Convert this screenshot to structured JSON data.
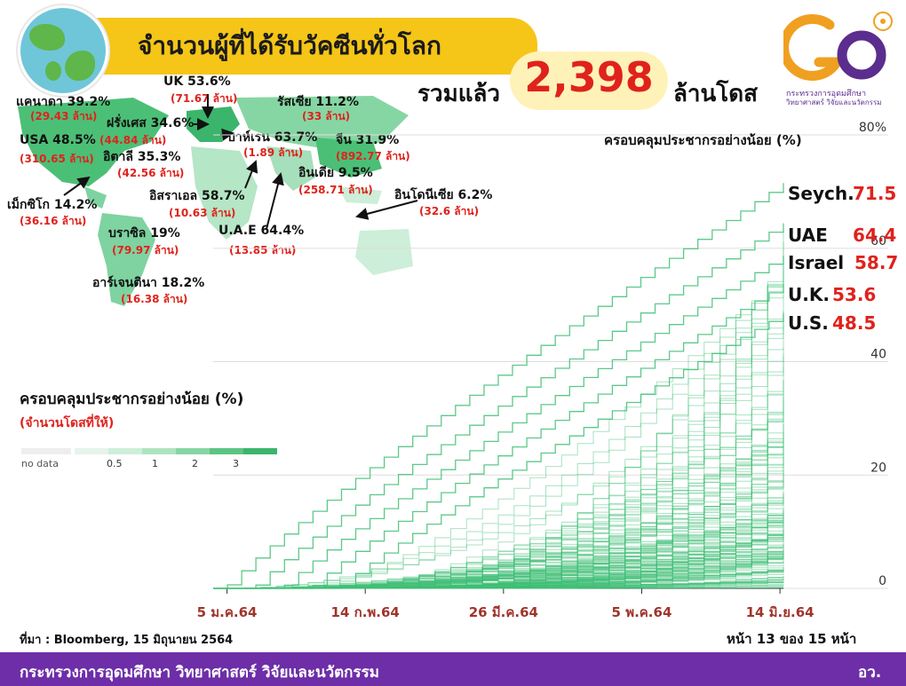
{
  "header": {
    "title": "จำนวนผู้ที่ได้รับวัคซีนทั่วโลก",
    "total_prefix": "รวมแล้ว",
    "total_value": "2,398",
    "total_suffix": "ล้านโดส"
  },
  "logo": {
    "line1": "กระทรวงการอุดมศึกษา",
    "line2": "วิทยาศาสตร์ วิจัยและนวัตกรรม",
    "colors": {
      "orange": "#f0a020",
      "purple": "#5b2d8e"
    }
  },
  "map_labels": [
    {
      "name": "แคนาดา 39.2%",
      "doses": "(29.43 ล้าน)"
    },
    {
      "name": "USA 48.5%",
      "doses": "(310.65 ล้าน)"
    },
    {
      "name": "เม็กซิโก 14.2%",
      "doses": "(36.16 ล้าน)"
    },
    {
      "name": "UK 53.6%",
      "doses": "(71.67 ล้าน)"
    },
    {
      "name": "ฝรั่งเศส 34.6%",
      "doses": "(44.84 ล้าน)"
    },
    {
      "name": "อิตาลี 35.3%",
      "doses": "(42.56 ล้าน)"
    },
    {
      "name": "รัสเซีย 11.2%",
      "doses": "(33 ล้าน)"
    },
    {
      "name": "บาห์เรน 63.7%",
      "doses": "(1.89 ล้าน)"
    },
    {
      "name": "จีน 31.9%",
      "doses": "(892.77 ล้าน)"
    },
    {
      "name": "อินเดีย 9.5%",
      "doses": "(258.71 ล้าน)"
    },
    {
      "name": "อิสราเอล 58.7%",
      "doses": "(10.63 ล้าน)"
    },
    {
      "name": "U.A.E 64.4%",
      "doses": "(13.85 ล้าน)"
    },
    {
      "name": "อินโดนีเซีย 6.2%",
      "doses": "(32.6 ล้าน)"
    },
    {
      "name": "บราซิล 19%",
      "doses": "(79.97 ล้าน)"
    },
    {
      "name": "อาร์เจนตินา 18.2%",
      "doses": "(16.38 ล้าน)"
    }
  ],
  "map_legend": {
    "title": "ครอบคลุมประชากรอย่างน้อย (%)",
    "subtitle": "(จำนวนโดสที่ให้)",
    "no_data": "no data",
    "ticks": [
      "0.5",
      "1",
      "2",
      "3"
    ],
    "colors": [
      "#e6f4ea",
      "#cdeed8",
      "#aee3c0",
      "#86d6a3",
      "#5cc483",
      "#3bb56c"
    ]
  },
  "chart_data": {
    "type": "line",
    "title": "ครอบคลุมประชากรอย่างน้อย (%)",
    "x_ticks": [
      "5 ม.ค.64",
      "14 ก.พ.64",
      "26 มี.ค.64",
      "5 พ.ค.64",
      "14 มิ.ย.64"
    ],
    "x_range": [
      "2021-01-01",
      "2021-06-15"
    ],
    "y_ticks": [
      "0",
      "20",
      "40",
      "60",
      "80%"
    ],
    "ylim": [
      0,
      80
    ],
    "grid": true,
    "line_color": "#3fbf75",
    "highlights": [
      {
        "name": "Seych.",
        "value": "71.5"
      },
      {
        "name": "UAE",
        "value": "64.4"
      },
      {
        "name": "Israel",
        "value": "58.7"
      },
      {
        "name": "U.K.",
        "value": "53.6"
      },
      {
        "name": "U.S.",
        "value": "48.5"
      }
    ]
  },
  "footer": {
    "source": "ที่มา : Bloomberg, 15 มิถุนายน 2564",
    "page": "หน้า 13 ของ 15 หน้า",
    "ministry": "กระทรวงการอุดมศึกษา วิทยาศาสตร์ วิจัยและนวัตกรรม",
    "abbr": "อว."
  }
}
